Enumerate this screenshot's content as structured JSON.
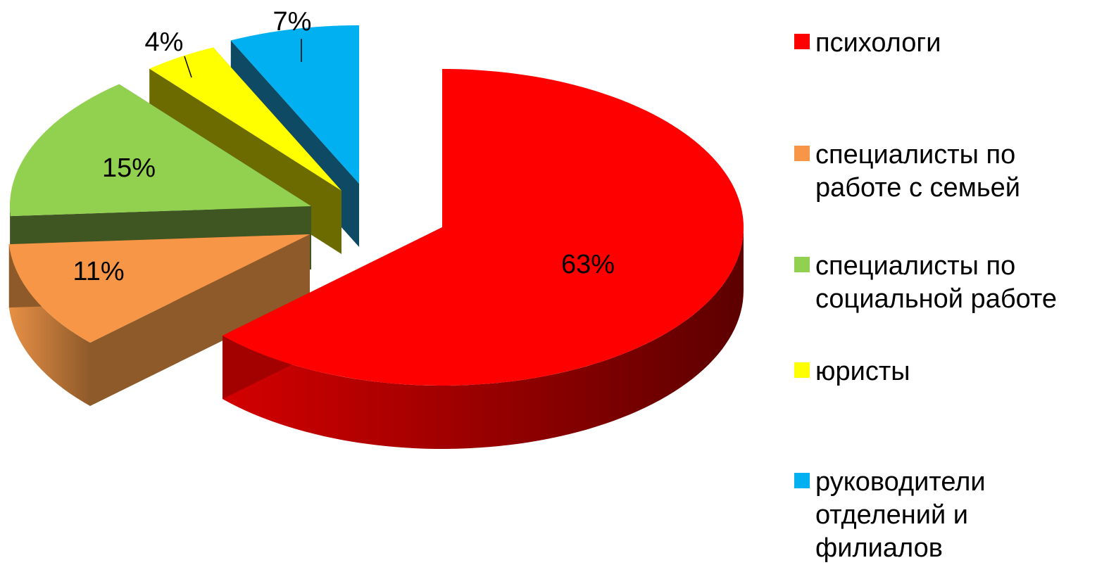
{
  "chart_data": {
    "type": "pie",
    "title": "",
    "legend_position": "right",
    "categories": [
      "психологи",
      "специалисты по работе с семьей",
      "специалисты по социальной работе",
      "юристы",
      "руководители отделений и филиалов"
    ],
    "values": [
      63,
      11,
      15,
      4,
      7
    ],
    "labels": [
      "63%",
      "11%",
      "15%",
      "4%",
      "7%"
    ],
    "colors": [
      "#FF0000",
      "#F79646",
      "#92D050",
      "#FFFF00",
      "#00B0F0"
    ],
    "side_colors": [
      "#A30000",
      "#8E5A2A",
      "#3F5522",
      "#6B6B00",
      "#0E4A63"
    ],
    "legend": [
      {
        "lines": [
          "психологи"
        ]
      },
      {
        "lines": [
          "специалисты по",
          "работе с семьей"
        ]
      },
      {
        "lines": [
          "специалисты по",
          "социальной работе"
        ]
      },
      {
        "lines": [
          "юристы"
        ]
      },
      {
        "lines": [
          "руководители",
          "отделений и",
          "филиалов"
        ]
      }
    ]
  }
}
